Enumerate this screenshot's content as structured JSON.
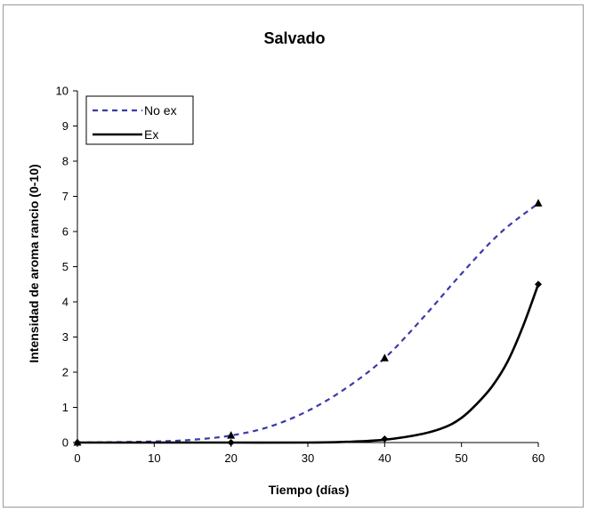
{
  "chart_data": {
    "type": "line",
    "title": "Salvado",
    "xlabel": "Tiempo (días)",
    "ylabel": "Intensidad de aroma rancio (0-10)",
    "xlim": [
      0,
      60
    ],
    "ylim": [
      0,
      10
    ],
    "x_ticks": [
      0,
      10,
      20,
      30,
      40,
      50,
      60
    ],
    "y_ticks": [
      0,
      1,
      2,
      3,
      4,
      5,
      6,
      7,
      8,
      9,
      10
    ],
    "grid": false,
    "legend_position": "top-left",
    "series": [
      {
        "name": "No ex",
        "style": "dashed",
        "color": "#3a3aa8",
        "marker": "triangle",
        "points": [
          [
            0,
            0
          ],
          [
            20,
            0.2
          ],
          [
            40,
            2.4
          ],
          [
            60,
            6.8
          ]
        ],
        "curve": [
          [
            0,
            0
          ],
          [
            10,
            0.03
          ],
          [
            15,
            0.08
          ],
          [
            20,
            0.2
          ],
          [
            25,
            0.45
          ],
          [
            30,
            0.9
          ],
          [
            35,
            1.55
          ],
          [
            40,
            2.4
          ],
          [
            45,
            3.55
          ],
          [
            50,
            4.8
          ],
          [
            55,
            5.95
          ],
          [
            60,
            6.8
          ]
        ]
      },
      {
        "name": "Ex",
        "style": "solid",
        "color": "#000000",
        "marker": "diamond",
        "points": [
          [
            0,
            0
          ],
          [
            20,
            0.0
          ],
          [
            40,
            0.1
          ],
          [
            60,
            4.5
          ]
        ],
        "curve": [
          [
            0,
            0
          ],
          [
            10,
            0
          ],
          [
            20,
            0
          ],
          [
            30,
            0
          ],
          [
            35,
            0.02
          ],
          [
            40,
            0.08
          ],
          [
            45,
            0.25
          ],
          [
            48,
            0.45
          ],
          [
            50,
            0.7
          ],
          [
            52,
            1.1
          ],
          [
            54,
            1.6
          ],
          [
            56,
            2.3
          ],
          [
            58,
            3.3
          ],
          [
            60,
            4.5
          ]
        ]
      }
    ]
  }
}
